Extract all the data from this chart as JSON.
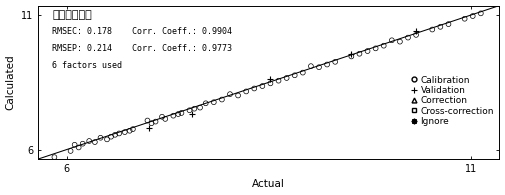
{
  "title": "原花青素含量",
  "xlabel": "Actual",
  "ylabel": "Calculated",
  "xlim": [
    5.65,
    11.35
  ],
  "ylim": [
    5.65,
    11.35
  ],
  "xticks": [
    6,
    11
  ],
  "yticks": [
    6,
    11
  ],
  "ann_line1": "RMSEC: 0.178    Corr. Coeff.: 0.9904",
  "ann_line2": "RMSEP: 0.214    Corr. Coeff.: 0.9773",
  "ann_line3": "6 factors used",
  "line_x": [
    5.65,
    11.35
  ],
  "line_y": [
    5.65,
    11.35
  ],
  "calibration": [
    [
      5.85,
      5.72
    ],
    [
      6.05,
      5.95
    ],
    [
      6.1,
      6.18
    ],
    [
      6.15,
      6.08
    ],
    [
      6.2,
      6.22
    ],
    [
      6.28,
      6.32
    ],
    [
      6.35,
      6.28
    ],
    [
      6.42,
      6.44
    ],
    [
      6.5,
      6.38
    ],
    [
      6.55,
      6.48
    ],
    [
      6.6,
      6.55
    ],
    [
      6.65,
      6.6
    ],
    [
      6.72,
      6.65
    ],
    [
      6.78,
      6.7
    ],
    [
      6.82,
      6.76
    ],
    [
      7.0,
      7.08
    ],
    [
      7.05,
      6.98
    ],
    [
      7.1,
      7.04
    ],
    [
      7.18,
      7.22
    ],
    [
      7.22,
      7.14
    ],
    [
      7.32,
      7.26
    ],
    [
      7.38,
      7.32
    ],
    [
      7.42,
      7.36
    ],
    [
      7.52,
      7.46
    ],
    [
      7.58,
      7.52
    ],
    [
      7.65,
      7.56
    ],
    [
      7.72,
      7.72
    ],
    [
      7.82,
      7.76
    ],
    [
      7.92,
      7.86
    ],
    [
      8.02,
      8.06
    ],
    [
      8.12,
      8.01
    ],
    [
      8.22,
      8.16
    ],
    [
      8.32,
      8.27
    ],
    [
      8.42,
      8.36
    ],
    [
      8.52,
      8.46
    ],
    [
      8.62,
      8.56
    ],
    [
      8.72,
      8.66
    ],
    [
      8.82,
      8.76
    ],
    [
      8.92,
      8.86
    ],
    [
      9.02,
      9.1
    ],
    [
      9.12,
      9.06
    ],
    [
      9.22,
      9.16
    ],
    [
      9.32,
      9.26
    ],
    [
      9.52,
      9.46
    ],
    [
      9.62,
      9.56
    ],
    [
      9.72,
      9.66
    ],
    [
      9.82,
      9.76
    ],
    [
      9.92,
      9.86
    ],
    [
      10.02,
      10.06
    ],
    [
      10.12,
      10.01
    ],
    [
      10.22,
      10.16
    ],
    [
      10.32,
      10.26
    ],
    [
      10.52,
      10.46
    ],
    [
      10.62,
      10.56
    ],
    [
      10.72,
      10.66
    ],
    [
      10.92,
      10.86
    ],
    [
      11.02,
      10.96
    ],
    [
      11.12,
      11.06
    ]
  ],
  "validation": [
    [
      7.02,
      6.82
    ],
    [
      7.55,
      7.32
    ],
    [
      8.52,
      8.62
    ],
    [
      9.52,
      9.56
    ],
    [
      10.32,
      10.42
    ]
  ],
  "font_size": 6.5,
  "marker_size_cal": 12,
  "marker_size_val": 18,
  "lw_cal": 0.5,
  "lw_val": 0.8
}
